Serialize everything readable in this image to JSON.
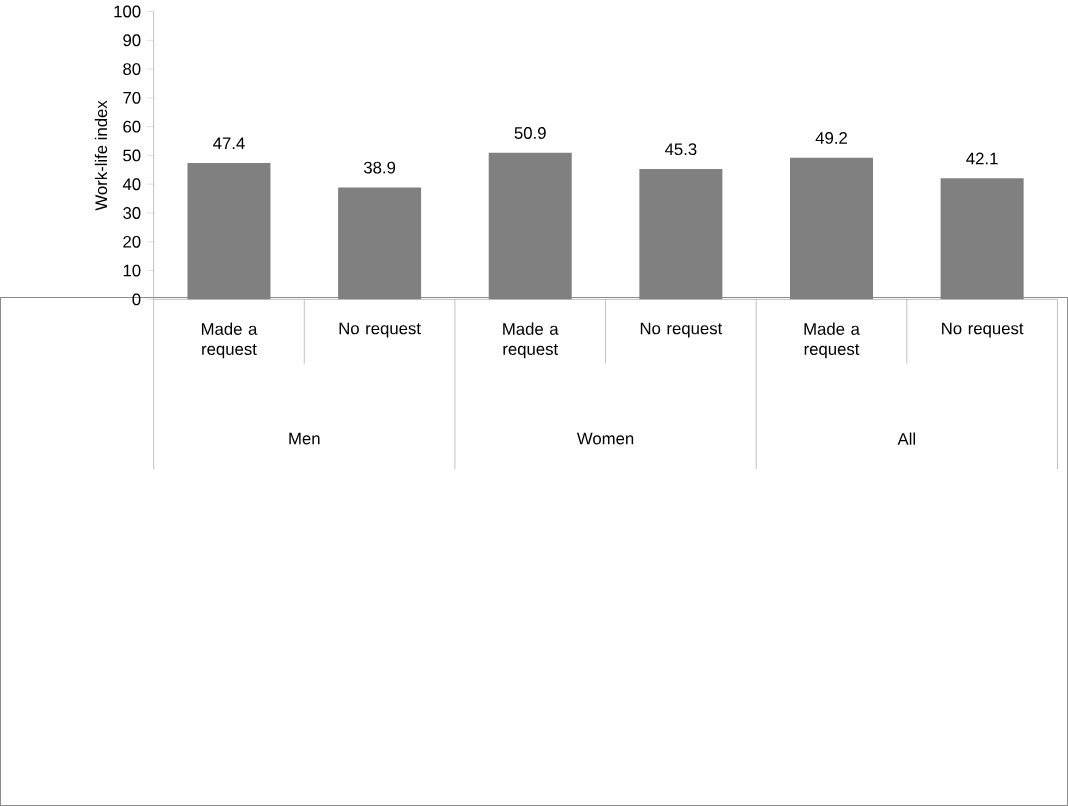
{
  "chart_data": {
    "type": "bar",
    "ylabel": "Work-life index",
    "categories": [
      "Made a request",
      "No request",
      "Made a request",
      "No request",
      "Made a request",
      "No request"
    ],
    "values": [
      47.4,
      38.9,
      50.9,
      45.3,
      49.2,
      42.1
    ],
    "color": "#808080",
    "data_labels": true,
    "ylim": [
      0,
      100
    ],
    "yticks": [
      0,
      10,
      20,
      30,
      40,
      50,
      60,
      70,
      80,
      90,
      100
    ],
    "annotations": [
      "Men",
      "Women",
      "All"
    ]
  }
}
